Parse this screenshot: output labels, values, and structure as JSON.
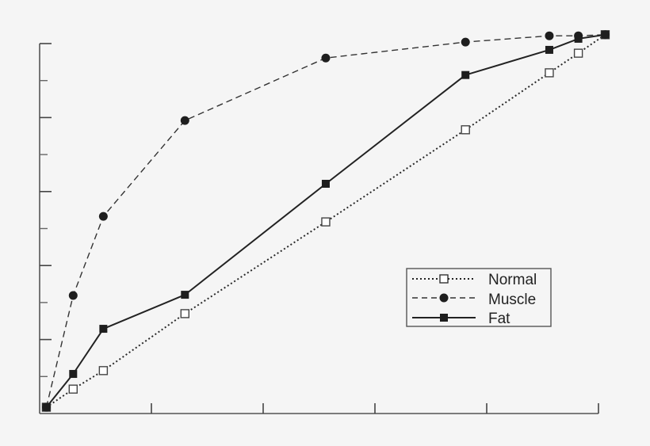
{
  "chart_data": {
    "type": "line",
    "title": "",
    "xlabel": "",
    "ylabel": "",
    "xlim": [
      0,
      5
    ],
    "ylim": [
      0,
      10
    ],
    "x_ticks": [
      0,
      1,
      2,
      3,
      4,
      5
    ],
    "y_ticks": [
      0,
      1,
      2,
      3,
      4,
      5,
      6,
      7,
      8,
      9,
      10
    ],
    "x_tick_labels": [],
    "y_tick_labels": [],
    "grid": false,
    "legend_position": "lower right",
    "series": [
      {
        "name": "Normal",
        "line_style": "dotted",
        "marker": "open-square",
        "color": "#222222",
        "x": [
          0.06,
          0.3,
          0.57,
          1.3,
          2.56,
          3.81,
          4.56,
          4.82,
          5.06
        ],
        "y": [
          0.17,
          0.66,
          1.16,
          2.7,
          5.18,
          7.67,
          9.21,
          9.74,
          10.24
        ]
      },
      {
        "name": "Muscle",
        "line_style": "dashed",
        "marker": "filled-circle",
        "color": "#222222",
        "x": [
          0.06,
          0.3,
          0.57,
          1.3,
          2.56,
          3.81,
          4.56,
          4.82,
          5.06
        ],
        "y": [
          0.17,
          3.19,
          5.33,
          7.92,
          9.61,
          10.04,
          10.21,
          10.21,
          10.24
        ]
      },
      {
        "name": "Fat",
        "line_style": "solid",
        "marker": "filled-square",
        "color": "#222222",
        "x": [
          0.06,
          0.3,
          0.57,
          1.3,
          2.56,
          3.81,
          4.56,
          4.82,
          5.06
        ],
        "y": [
          0.17,
          1.07,
          2.29,
          3.21,
          6.21,
          9.15,
          9.83,
          10.13,
          10.24
        ]
      }
    ]
  },
  "legend": {
    "items": [
      {
        "label": "Normal",
        "style": "dotted",
        "marker": "open-square"
      },
      {
        "label": "Muscle",
        "style": "dashed",
        "marker": "filled-circle"
      },
      {
        "label": "Fat",
        "style": "solid",
        "marker": "filled-square"
      }
    ]
  },
  "colors": {
    "background": "#f5f5f5",
    "ink": "#222222",
    "axis": "#555555"
  }
}
